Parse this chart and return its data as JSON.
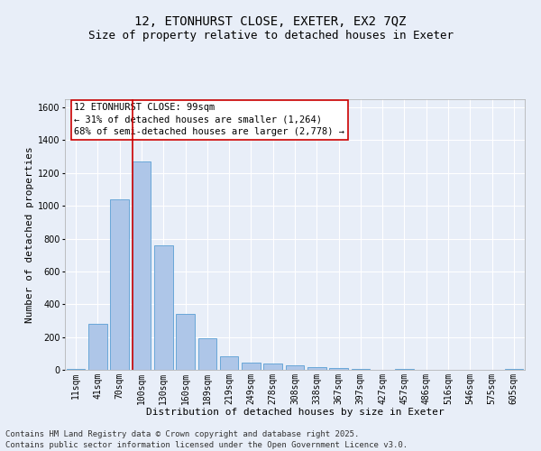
{
  "title_line1": "12, ETONHURST CLOSE, EXETER, EX2 7QZ",
  "title_line2": "Size of property relative to detached houses in Exeter",
  "xlabel": "Distribution of detached houses by size in Exeter",
  "ylabel": "Number of detached properties",
  "categories": [
    "11sqm",
    "41sqm",
    "70sqm",
    "100sqm",
    "130sqm",
    "160sqm",
    "189sqm",
    "219sqm",
    "249sqm",
    "278sqm",
    "308sqm",
    "338sqm",
    "367sqm",
    "397sqm",
    "427sqm",
    "457sqm",
    "486sqm",
    "516sqm",
    "546sqm",
    "575sqm",
    "605sqm"
  ],
  "values": [
    8,
    280,
    1040,
    1270,
    760,
    340,
    190,
    80,
    45,
    38,
    28,
    18,
    10,
    8,
    0,
    8,
    0,
    0,
    0,
    0,
    8
  ],
  "bar_color": "#aec6e8",
  "bar_edge_color": "#5a9fd4",
  "vline_color": "#cc0000",
  "vline_x_index": 3,
  "annotation_title": "12 ETONHURST CLOSE: 99sqm",
  "annotation_line2": "← 31% of detached houses are smaller (1,264)",
  "annotation_line3": "68% of semi-detached houses are larger (2,778) →",
  "annotation_box_color": "#cc0000",
  "annotation_bg": "#ffffff",
  "ylim": [
    0,
    1650
  ],
  "yticks": [
    0,
    200,
    400,
    600,
    800,
    1000,
    1200,
    1400,
    1600
  ],
  "bg_color": "#e8eef8",
  "plot_bg_color": "#e8eef8",
  "grid_color": "#ffffff",
  "footer_line1": "Contains HM Land Registry data © Crown copyright and database right 2025.",
  "footer_line2": "Contains public sector information licensed under the Open Government Licence v3.0.",
  "title_fontsize": 10,
  "subtitle_fontsize": 9,
  "axis_label_fontsize": 8,
  "tick_fontsize": 7,
  "annotation_fontsize": 7.5,
  "footer_fontsize": 6.5
}
